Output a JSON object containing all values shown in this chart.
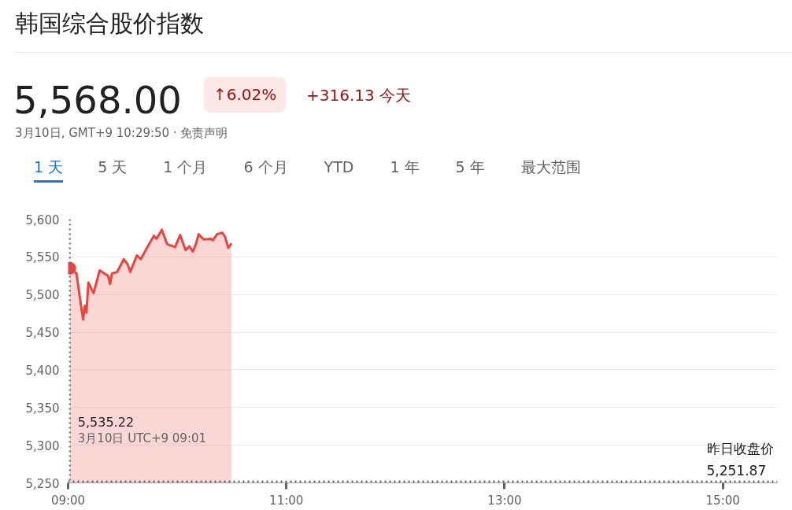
{
  "chart_data": {
    "type": "area",
    "title": "韩国综合股价指数",
    "subtitle": "5,568.00",
    "annotations": [
      "↑6.02%",
      "+316.13 今天",
      "3月10日, GMT+9 10:29:50 · 免责声明",
      "1 天",
      "5 天",
      "1 个月",
      "6 个月",
      "YTD",
      "1 年",
      "5 年",
      "最大范围",
      "5,535.22",
      "3月10日 UTC+9 09:01"
    ],
    "x": [
      9.0167,
      9.077,
      9.1,
      9.137,
      9.154,
      9.168,
      9.186,
      9.233,
      9.289,
      9.342,
      9.366,
      9.385,
      9.402,
      9.45,
      9.51,
      9.546,
      9.57,
      9.63,
      9.666,
      9.726,
      9.787,
      9.81,
      9.859,
      9.907,
      9.98,
      10.027,
      10.076,
      10.112,
      10.143,
      10.171,
      10.196,
      10.244,
      10.304,
      10.328,
      10.364,
      10.413,
      10.437,
      10.468,
      10.497
    ],
    "series": [
      {
        "color": "#e8453c",
        "values": [
          5535,
          5528,
          5504,
          5467,
          5485,
          5476,
          5516,
          5502,
          5532,
          5527,
          5525,
          5514,
          5528,
          5530,
          5547,
          5540,
          5530,
          5552,
          5547,
          5563,
          5578,
          5574,
          5586,
          5567,
          5563,
          5579,
          5559,
          5564,
          5557,
          5567,
          5580,
          5573,
          5574,
          5572,
          5580,
          5582,
          5577,
          5562,
          5568
        ]
      }
    ],
    "xlim": [
      9,
      15.5
    ],
    "xticks": [
      {
        "value": 9,
        "label": "09:00"
      },
      {
        "value": 11,
        "label": "11:00"
      },
      {
        "value": 13,
        "label": "13:00"
      },
      {
        "value": 15,
        "label": "15:00"
      }
    ],
    "ylim": [
      5250,
      5600
    ],
    "yticks": [
      {
        "value": 5250,
        "label": "5,250"
      },
      {
        "value": 5300,
        "label": "5,300"
      },
      {
        "value": 5350,
        "label": "5,350"
      },
      {
        "value": 5400,
        "label": "5,400"
      },
      {
        "value": 5450,
        "label": "5,450"
      },
      {
        "value": 5500,
        "label": "5,500"
      },
      {
        "value": 5550,
        "label": "5,550"
      },
      {
        "value": 5600,
        "label": "5,600"
      }
    ],
    "ref_lines": [
      {
        "axis": "y",
        "value": 5251.87,
        "label": "昨日收盘价 5,251.87",
        "line_style": "dotted",
        "color": "#5f6368"
      },
      {
        "axis": "x",
        "value": 9.0167,
        "label": null,
        "line_style": "dotted",
        "color": "#70757a"
      }
    ],
    "grid": "y",
    "line_style": "solid"
  }
}
